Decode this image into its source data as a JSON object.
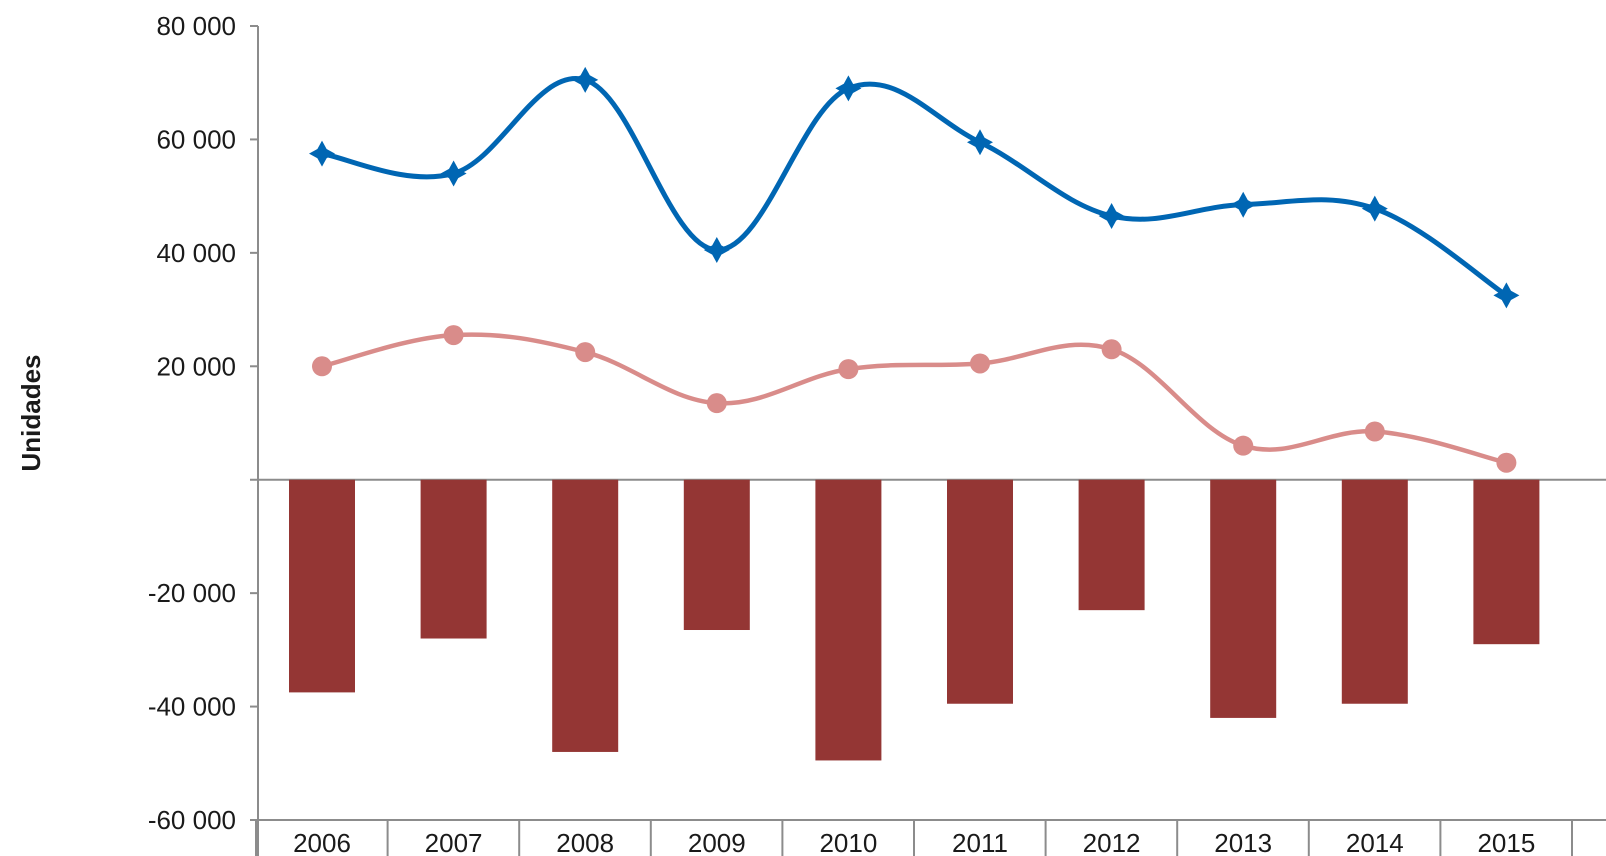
{
  "chart_data": {
    "type": "bar+line",
    "title": "",
    "xlabel": "",
    "ylabel": "Unidades",
    "ylim": [
      -60000,
      80000
    ],
    "yticks": [
      80000,
      60000,
      40000,
      20000,
      -20000,
      -40000,
      -60000
    ],
    "ytick_labels": [
      "80 000",
      "60 000",
      "40 000",
      "20 000",
      "-20 000",
      "-40 000",
      "-60 000"
    ],
    "categories": [
      "2006",
      "2007",
      "2008",
      "2009",
      "2010",
      "2011",
      "2012",
      "2013",
      "2014",
      "2015"
    ],
    "grid": false,
    "legend": "none",
    "series": [
      {
        "kind": "line",
        "color": "#0066b3",
        "marker": "star",
        "smooth": true,
        "values": [
          57500,
          54000,
          70500,
          40500,
          69000,
          59500,
          46500,
          48500,
          47800,
          32500
        ]
      },
      {
        "kind": "line",
        "color": "#d98c8a",
        "marker": "circle",
        "smooth": true,
        "values": [
          20000,
          25500,
          22500,
          13500,
          19500,
          20500,
          23000,
          6000,
          8500,
          3000
        ]
      },
      {
        "kind": "bar",
        "color": "#943634",
        "values": [
          -37500,
          -28000,
          -48000,
          -26500,
          -49500,
          -39500,
          -23000,
          -42000,
          -39500,
          -29000
        ]
      }
    ]
  }
}
